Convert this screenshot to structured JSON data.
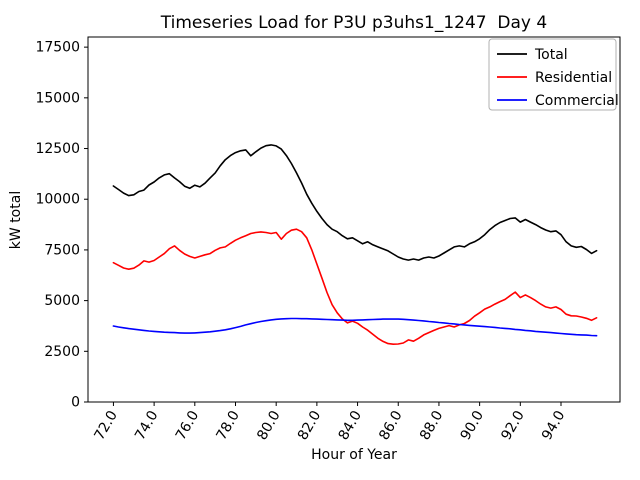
{
  "figure": {
    "background": "#ffffff"
  },
  "chart_data": {
    "type": "line",
    "title": "Timeseries Load for P3U p3uhs1_1247  Day 4",
    "xlabel": "Hour of Year",
    "ylabel": "kW total",
    "xlim": [
      70.75,
      96.9
    ],
    "ylim": [
      0,
      18000
    ],
    "grid": false,
    "legend_position": "upper right",
    "axis_color": "#000000",
    "legend_border_color": "#b0b0b0",
    "xticks": {
      "values": [
        72,
        74,
        76,
        78,
        80,
        82,
        84,
        86,
        88,
        90,
        92,
        94
      ],
      "labels": [
        "72.0",
        "74.0",
        "76.0",
        "78.0",
        "80.0",
        "82.0",
        "84.0",
        "86.0",
        "88.0",
        "90.0",
        "92.0",
        "94.0"
      ]
    },
    "yticks": {
      "values": [
        0,
        2500,
        5000,
        7500,
        10000,
        12500,
        15000,
        17500
      ],
      "labels": [
        "0",
        "2500",
        "5000",
        "7500",
        "10000",
        "12500",
        "15000",
        "17500"
      ]
    },
    "x": [
      72.0,
      72.25,
      72.5,
      72.75,
      73.0,
      73.25,
      73.5,
      73.75,
      74.0,
      74.25,
      74.5,
      74.75,
      75.0,
      75.25,
      75.5,
      75.75,
      76.0,
      76.25,
      76.5,
      76.75,
      77.0,
      77.25,
      77.5,
      77.75,
      78.0,
      78.25,
      78.5,
      78.75,
      79.0,
      79.25,
      79.5,
      79.75,
      80.0,
      80.25,
      80.5,
      80.75,
      81.0,
      81.25,
      81.5,
      81.75,
      82.0,
      82.25,
      82.5,
      82.75,
      83.0,
      83.25,
      83.5,
      83.75,
      84.0,
      84.25,
      84.5,
      84.75,
      85.0,
      85.25,
      85.5,
      85.75,
      86.0,
      86.25,
      86.5,
      86.75,
      87.0,
      87.25,
      87.5,
      87.75,
      88.0,
      88.25,
      88.5,
      88.75,
      89.0,
      89.25,
      89.5,
      89.75,
      90.0,
      90.25,
      90.5,
      90.75,
      91.0,
      91.25,
      91.5,
      91.75,
      92.0,
      92.25,
      92.5,
      92.75,
      93.0,
      93.25,
      93.5,
      93.75,
      94.0,
      94.25,
      94.5,
      94.75,
      95.0,
      95.25,
      95.5,
      95.75
    ],
    "series": [
      {
        "name": "Total",
        "color": "#000000",
        "values": [
          10650,
          10480,
          10300,
          10180,
          10220,
          10380,
          10450,
          10700,
          10850,
          11050,
          11200,
          11260,
          11050,
          10870,
          10640,
          10540,
          10690,
          10610,
          10790,
          11050,
          11300,
          11650,
          11950,
          12150,
          12300,
          12390,
          12430,
          12140,
          12340,
          12520,
          12640,
          12680,
          12630,
          12470,
          12150,
          11760,
          11300,
          10800,
          10250,
          9800,
          9400,
          9050,
          8750,
          8520,
          8400,
          8200,
          8050,
          8100,
          7950,
          7800,
          7900,
          7750,
          7650,
          7550,
          7450,
          7300,
          7150,
          7050,
          7000,
          7050,
          7000,
          7100,
          7150,
          7100,
          7200,
          7350,
          7500,
          7650,
          7700,
          7650,
          7800,
          7900,
          8050,
          8250,
          8500,
          8700,
          8850,
          8950,
          9050,
          9080,
          8870,
          9000,
          8870,
          8750,
          8600,
          8480,
          8400,
          8440,
          8250,
          7900,
          7700,
          7630,
          7670,
          7520,
          7330,
          7460
        ]
      },
      {
        "name": "Residential",
        "color": "#ff0000",
        "values": [
          6870,
          6740,
          6610,
          6550,
          6600,
          6750,
          6960,
          6900,
          6980,
          7150,
          7320,
          7560,
          7700,
          7480,
          7300,
          7180,
          7100,
          7180,
          7260,
          7320,
          7480,
          7600,
          7650,
          7820,
          7980,
          8100,
          8200,
          8310,
          8360,
          8390,
          8360,
          8310,
          8360,
          8030,
          8310,
          8470,
          8520,
          8400,
          8100,
          7500,
          6800,
          6100,
          5400,
          4800,
          4400,
          4100,
          3900,
          3990,
          3880,
          3700,
          3540,
          3340,
          3140,
          2990,
          2880,
          2850,
          2860,
          2910,
          3060,
          3000,
          3140,
          3310,
          3420,
          3530,
          3630,
          3700,
          3770,
          3700,
          3800,
          3870,
          4020,
          4230,
          4400,
          4580,
          4690,
          4830,
          4950,
          5060,
          5240,
          5420,
          5150,
          5280,
          5150,
          5000,
          4830,
          4690,
          4630,
          4690,
          4560,
          4330,
          4250,
          4240,
          4190,
          4130,
          4030,
          4150
        ]
      },
      {
        "name": "Commercial",
        "color": "#0000ff",
        "values": [
          3750,
          3700,
          3660,
          3620,
          3590,
          3560,
          3530,
          3500,
          3480,
          3460,
          3440,
          3430,
          3420,
          3410,
          3400,
          3400,
          3410,
          3420,
          3440,
          3460,
          3490,
          3520,
          3560,
          3610,
          3670,
          3730,
          3800,
          3860,
          3920,
          3970,
          4010,
          4050,
          4080,
          4100,
          4110,
          4120,
          4120,
          4110,
          4110,
          4100,
          4090,
          4080,
          4070,
          4060,
          4050,
          4040,
          4030,
          4030,
          4040,
          4050,
          4060,
          4070,
          4080,
          4090,
          4090,
          4090,
          4090,
          4080,
          4060,
          4040,
          4020,
          4000,
          3970,
          3950,
          3920,
          3900,
          3870,
          3850,
          3820,
          3800,
          3780,
          3760,
          3740,
          3720,
          3700,
          3680,
          3650,
          3630,
          3610,
          3580,
          3560,
          3530,
          3510,
          3480,
          3460,
          3440,
          3420,
          3400,
          3380,
          3360,
          3340,
          3320,
          3310,
          3300,
          3280,
          3270
        ]
      }
    ]
  }
}
